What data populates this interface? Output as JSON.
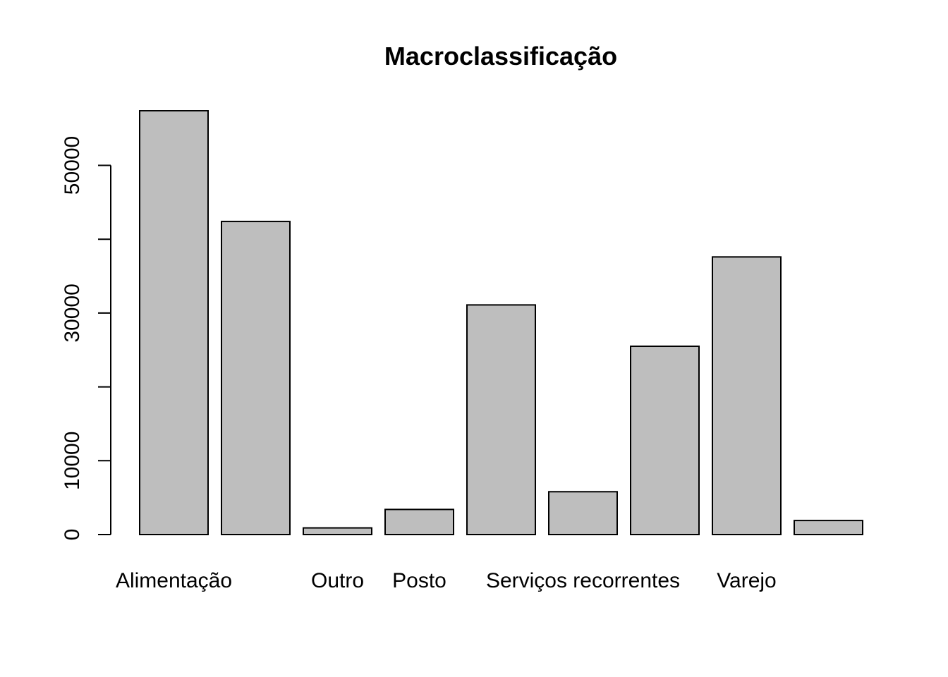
{
  "chart_data": {
    "type": "bar",
    "title": "Macroclassificação",
    "xlabel": "",
    "ylabel": "",
    "categories": [
      "Alimentação",
      "",
      "Outro",
      "Posto",
      "",
      "Serviços recorrentes",
      "",
      "Varejo",
      ""
    ],
    "values": [
      57400,
      42400,
      900,
      3400,
      31100,
      5800,
      25500,
      37600,
      1900
    ],
    "ylim": [
      0,
      60000
    ],
    "yticks": [
      0,
      10000,
      20000,
      30000,
      40000,
      50000
    ],
    "ytick_labels": [
      "0",
      "10000",
      "",
      "30000",
      "",
      "50000"
    ],
    "grid": false,
    "legend": "none",
    "colors": {
      "bar_fill": "#bebebe",
      "bar_stroke": "#000000",
      "text": "#000000"
    }
  }
}
